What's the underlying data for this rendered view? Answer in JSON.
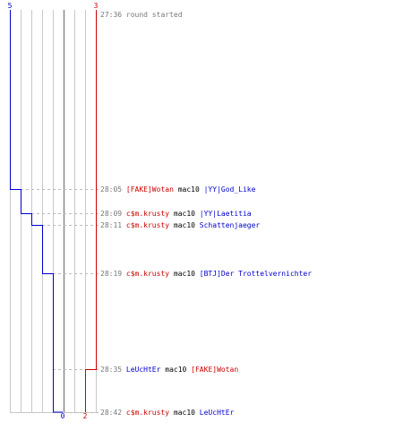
{
  "teams": {
    "blue": {
      "start_count": "5",
      "end_count": "0",
      "color": "#0000cc"
    },
    "red": {
      "start_count": "3",
      "end_count": "2",
      "color": "#cc0000"
    }
  },
  "colors": {
    "time": "#777777",
    "weapon": "#000000",
    "grid": "#c8c8c8",
    "center_line": "#888888",
    "dash": "#bbbbbb"
  },
  "events": [
    {
      "time": "27:36",
      "message": "round started"
    },
    {
      "time": "28:05",
      "killer": "[FAKE]Wotan",
      "killer_team": "red",
      "weapon": "mac10",
      "victim": "|YY|God_Like",
      "victim_team": "blue"
    },
    {
      "time": "28:09",
      "killer": "c$m.krusty",
      "killer_team": "red",
      "weapon": "mac10",
      "victim": "|YY|Laetitia",
      "victim_team": "blue"
    },
    {
      "time": "28:11",
      "killer": "c$m.krusty",
      "killer_team": "red",
      "weapon": "mac10",
      "victim": "Schattenjaeger",
      "victim_team": "blue"
    },
    {
      "time": "28:19",
      "killer": "c$m.krusty",
      "killer_team": "red",
      "weapon": "mac10",
      "victim": "[BTJ]Der Trottelvernichter",
      "victim_team": "blue"
    },
    {
      "time": "28:35",
      "killer": "LeUcHtEr",
      "killer_team": "blue",
      "weapon": "mac10",
      "victim": "[FAKE]Wotan",
      "victim_team": "red"
    },
    {
      "time": "28:42",
      "killer": "c$m.krusty",
      "killer_team": "red",
      "weapon": "mac10",
      "victim": "LeUcHtEr",
      "victim_team": "blue"
    }
  ]
}
